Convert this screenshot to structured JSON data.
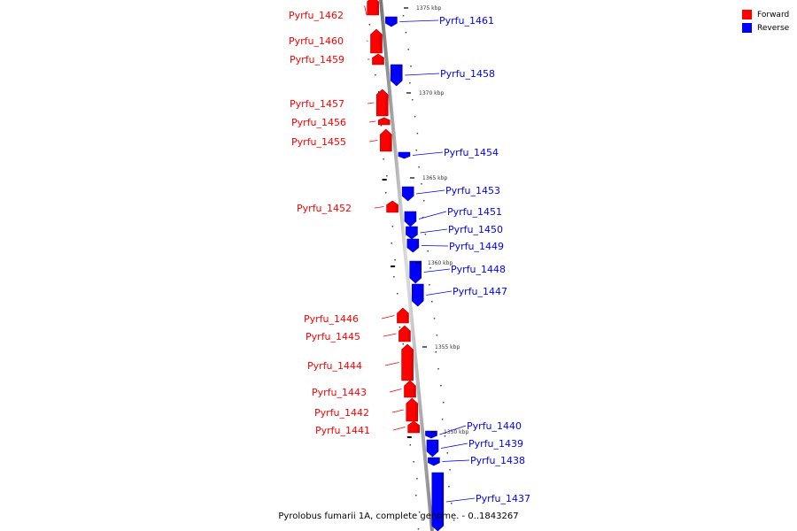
{
  "legend": {
    "forward_label": "Forward",
    "reverse_label": "Reverse",
    "forward_color": "#ff0000",
    "reverse_color": "#0000ff"
  },
  "caption": "Pyrolobus fumarii 1A, complete genome. - 0..1843267",
  "scale_labels": [
    "1375 kbp",
    "1370 kbp",
    "1365 kbp",
    "1360 kbp",
    "1355 kbp",
    "1350 kbp"
  ],
  "genes": [
    {
      "name": "Pyrfu_1462",
      "strand": "forward"
    },
    {
      "name": "Pyrfu_1461",
      "strand": "reverse"
    },
    {
      "name": "Pyrfu_1460",
      "strand": "forward"
    },
    {
      "name": "Pyrfu_1459",
      "strand": "forward"
    },
    {
      "name": "Pyrfu_1458",
      "strand": "reverse"
    },
    {
      "name": "Pyrfu_1457",
      "strand": "forward"
    },
    {
      "name": "Pyrfu_1456",
      "strand": "forward"
    },
    {
      "name": "Pyrfu_1455",
      "strand": "forward"
    },
    {
      "name": "Pyrfu_1454",
      "strand": "reverse"
    },
    {
      "name": "Pyrfu_1453",
      "strand": "reverse"
    },
    {
      "name": "Pyrfu_1452",
      "strand": "forward"
    },
    {
      "name": "Pyrfu_1451",
      "strand": "reverse"
    },
    {
      "name": "Pyrfu_1450",
      "strand": "reverse"
    },
    {
      "name": "Pyrfu_1449",
      "strand": "reverse"
    },
    {
      "name": "Pyrfu_1448",
      "strand": "reverse"
    },
    {
      "name": "Pyrfu_1447",
      "strand": "reverse"
    },
    {
      "name": "Pyrfu_1446",
      "strand": "forward"
    },
    {
      "name": "Pyrfu_1445",
      "strand": "forward"
    },
    {
      "name": "Pyrfu_1444",
      "strand": "forward"
    },
    {
      "name": "Pyrfu_1443",
      "strand": "forward"
    },
    {
      "name": "Pyrfu_1442",
      "strand": "forward"
    },
    {
      "name": "Pyrfu_1441",
      "strand": "forward"
    },
    {
      "name": "Pyrfu_1440",
      "strand": "reverse"
    },
    {
      "name": "Pyrfu_1439",
      "strand": "reverse"
    },
    {
      "name": "Pyrfu_1438",
      "strand": "reverse"
    },
    {
      "name": "Pyrfu_1437",
      "strand": "reverse"
    }
  ]
}
